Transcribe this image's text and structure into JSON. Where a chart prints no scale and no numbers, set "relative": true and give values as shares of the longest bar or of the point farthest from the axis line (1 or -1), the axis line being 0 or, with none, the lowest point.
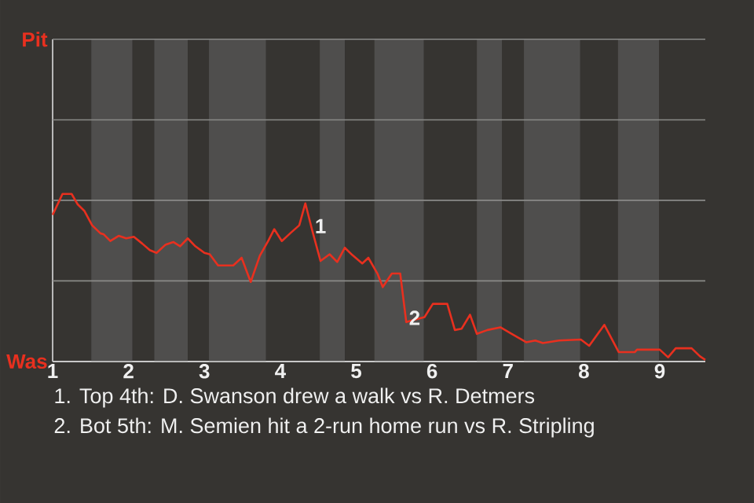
{
  "chart_data": {
    "type": "line",
    "relative": true,
    "xlim": [
      1,
      9.6
    ],
    "xticks": [
      1,
      2,
      3,
      4,
      5,
      6,
      7,
      8,
      9
    ],
    "marker": "none",
    "line_style": "solid",
    "x": [
      1.0,
      1.13,
      1.25,
      1.33,
      1.42,
      1.52,
      1.63,
      1.67,
      1.76,
      1.87,
      1.97,
      2.07,
      2.18,
      2.28,
      2.37,
      2.49,
      2.59,
      2.68,
      2.78,
      2.88,
      3.0,
      3.07,
      3.18,
      3.38,
      3.49,
      3.61,
      3.73,
      3.84,
      3.92,
      4.02,
      4.13,
      4.25,
      4.33,
      4.42,
      4.53,
      4.65,
      4.75,
      4.85,
      4.95,
      5.08,
      5.16,
      5.28,
      5.35,
      5.47,
      5.58,
      5.66,
      5.77,
      5.9,
      6.01,
      6.2,
      6.3,
      6.39,
      6.5,
      6.59,
      6.73,
      6.9,
      7.05,
      7.24,
      7.36,
      7.46,
      7.67,
      7.96,
      8.07,
      8.27,
      8.46,
      8.67,
      8.7,
      9.0,
      9.11,
      9.21,
      9.42,
      9.53,
      9.6
    ],
    "series": [
      {
        "color": "#e8301f",
        "values": [
          0.875,
          1,
          1,
          0.938,
          0.898,
          0.813,
          0.765,
          0.76,
          0.719,
          0.75,
          0.735,
          0.744,
          0.704,
          0.665,
          0.648,
          0.698,
          0.713,
          0.688,
          0.735,
          0.688,
          0.648,
          0.64,
          0.573,
          0.573,
          0.619,
          0.475,
          0.631,
          0.719,
          0.79,
          0.719,
          0.765,
          0.813,
          0.944,
          0.783,
          0.6,
          0.64,
          0.594,
          0.679,
          0.635,
          0.585,
          0.619,
          0.525,
          0.444,
          0.525,
          0.525,
          0.235,
          0.25,
          0.265,
          0.344,
          0.344,
          0.188,
          0.196,
          0.279,
          0.165,
          0.188,
          0.204,
          0.165,
          0.115,
          0.125,
          0.11,
          0.125,
          0.131,
          0.094,
          0.219,
          0.056,
          0.056,
          0.071,
          0.071,
          0.025,
          0.079,
          0.079,
          0.031,
          0.01
        ]
      }
    ],
    "ref_lines": [
      {
        "axis": "y",
        "value": 0,
        "color": "#c8c8c8"
      },
      {
        "axis": "y",
        "value": 0.481,
        "color": "#8a8a88"
      },
      {
        "axis": "y",
        "value": 0.962,
        "color": "#8a8a88"
      },
      {
        "axis": "y",
        "value": 1.442,
        "color": "#8a8a88"
      },
      {
        "axis": "y",
        "value": 1.923,
        "color": "#8a8a88"
      }
    ],
    "bands": [
      {
        "axis": "x",
        "from": 1.51,
        "to": 2.05,
        "color": "#4f4e4d"
      },
      {
        "axis": "x",
        "from": 2.34,
        "to": 2.78,
        "color": "#4f4e4d"
      },
      {
        "axis": "x",
        "from": 3.06,
        "to": 3.81,
        "color": "#4f4e4d"
      },
      {
        "axis": "x",
        "from": 4.52,
        "to": 4.85,
        "color": "#4f4e4d"
      },
      {
        "axis": "x",
        "from": 5.24,
        "to": 5.89,
        "color": "#4f4e4d"
      },
      {
        "axis": "x",
        "from": 6.59,
        "to": 6.92,
        "color": "#4f4e4d"
      },
      {
        "axis": "x",
        "from": 7.21,
        "to": 7.95,
        "color": "#4f4e4d"
      },
      {
        "axis": "x",
        "from": 8.45,
        "to": 8.99,
        "color": "#4f4e4d"
      }
    ],
    "annotations": [
      {
        "text": "Pit",
        "x": 1,
        "y": 1.923
      },
      {
        "text": "Was",
        "x": 1,
        "y": 0
      },
      {
        "text": "1",
        "x": 4.42,
        "y": 0.783
      },
      {
        "text": "2",
        "x": 5.66,
        "y": 0.235
      },
      "1. Top 4th: D. Swanson drew a walk vs R. Detmers",
      "2. Bot 5th: M. Semien hit a 2-run home run vs R. Stripling"
    ]
  }
}
